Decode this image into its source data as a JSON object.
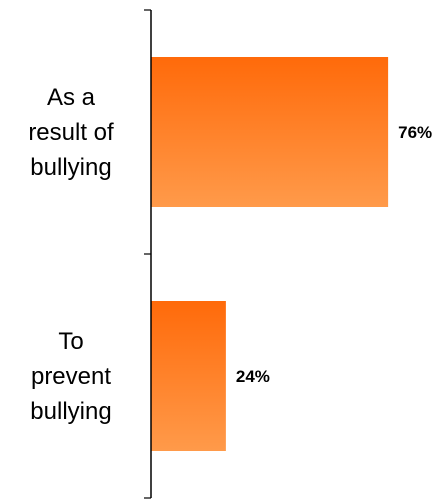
{
  "chart_data": {
    "type": "bar",
    "orientation": "horizontal",
    "categories": [
      [
        "As a",
        "result of",
        "bullying"
      ],
      [
        "To",
        "prevent",
        "bullying"
      ]
    ],
    "values": [
      76,
      24
    ],
    "value_labels": [
      "76%",
      "24%"
    ],
    "xlim": [
      0,
      100
    ],
    "grid": false,
    "legend": "none",
    "colors": {
      "bar_top": "#ff6a0a",
      "bar_bottom": "#ff9a4a",
      "axis": "#000000"
    }
  }
}
